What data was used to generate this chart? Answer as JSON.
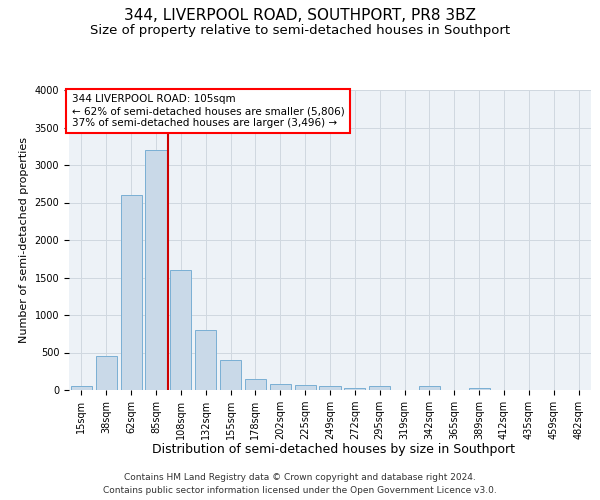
{
  "title": "344, LIVERPOOL ROAD, SOUTHPORT, PR8 3BZ",
  "subtitle": "Size of property relative to semi-detached houses in Southport",
  "xlabel": "Distribution of semi-detached houses by size in Southport",
  "ylabel": "Number of semi-detached properties",
  "footer1": "Contains HM Land Registry data © Crown copyright and database right 2024.",
  "footer2": "Contains public sector information licensed under the Open Government Licence v3.0.",
  "categories": [
    "15sqm",
    "38sqm",
    "62sqm",
    "85sqm",
    "108sqm",
    "132sqm",
    "155sqm",
    "178sqm",
    "202sqm",
    "225sqm",
    "249sqm",
    "272sqm",
    "295sqm",
    "319sqm",
    "342sqm",
    "365sqm",
    "389sqm",
    "412sqm",
    "435sqm",
    "459sqm",
    "482sqm"
  ],
  "values": [
    50,
    450,
    2600,
    3200,
    1600,
    800,
    400,
    150,
    80,
    70,
    50,
    30,
    50,
    5,
    50,
    5,
    30,
    5,
    5,
    5,
    5
  ],
  "bar_color": "#c9d9e8",
  "bar_edge_color": "#7aafd4",
  "red_line_x": 3.5,
  "red_line_label": "344 LIVERPOOL ROAD: 105sqm",
  "annotation_line1": "← 62% of semi-detached houses are smaller (5,806)",
  "annotation_line2": "37% of semi-detached houses are larger (3,496) →",
  "annotation_box_color": "white",
  "annotation_box_edge": "red",
  "ylim": [
    0,
    4000
  ],
  "yticks": [
    0,
    500,
    1000,
    1500,
    2000,
    2500,
    3000,
    3500,
    4000
  ],
  "grid_color": "#d0d8e0",
  "bg_color": "#edf2f7",
  "title_fontsize": 11,
  "subtitle_fontsize": 9.5,
  "xlabel_fontsize": 9,
  "ylabel_fontsize": 8,
  "tick_fontsize": 7,
  "footer_fontsize": 6.5,
  "annotation_fontsize": 7.5
}
